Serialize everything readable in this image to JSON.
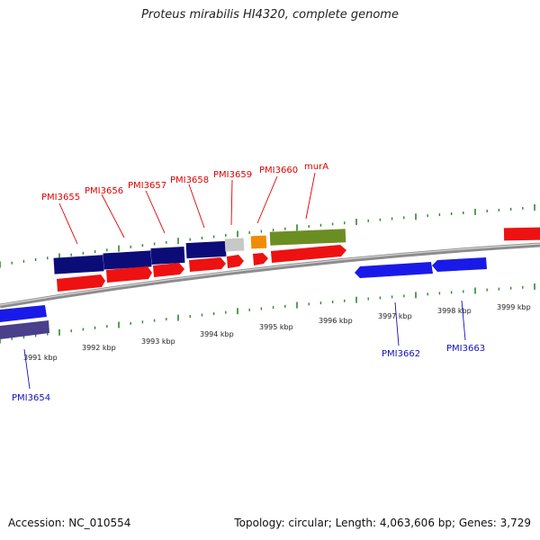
{
  "title": "Proteus mirabilis HI4320, complete genome",
  "accession": "Accession: NC_010554",
  "stats": "Topology: circular; Length: 4,063,606 bp; Genes: 3,729",
  "colors": {
    "gene_label_forward": "#e00000",
    "gene_label_reverse": "#1010c0",
    "cds_forward": "#ee1111",
    "cds_reverse_dark": "#0c0c78",
    "cds_reverse": "#1a1ae8",
    "rna": "#f08c00",
    "gene_green": "#6b8e23",
    "gene_grey": "#c8c8c8",
    "backbone": "#8c8c8c",
    "tick": "#2a8a2a"
  },
  "scale": {
    "labels": [
      "3991 kbp",
      "3992 kbp",
      "3993 kbp",
      "3994 kbp",
      "3995 kbp",
      "3996 kbp",
      "3997 kbp",
      "3998 kbp",
      "3999 kbp"
    ]
  },
  "gene_labels": {
    "forward": [
      "PMI3655",
      "PMI3656",
      "PMI3657",
      "PMI3658",
      "PMI3659",
      "PMI3660",
      "murA"
    ],
    "reverse": [
      "PMI3654",
      "PMI3662",
      "PMI3663"
    ]
  }
}
